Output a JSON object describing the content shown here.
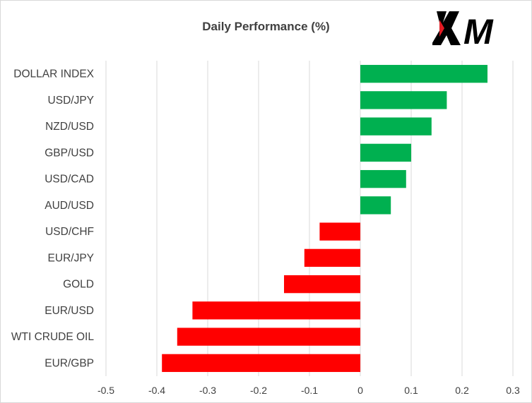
{
  "chart_data": {
    "type": "bar",
    "orientation": "horizontal",
    "title": "Daily Performance (%)",
    "categories": [
      "DOLLAR INDEX",
      "USD/JPY",
      "NZD/USD",
      "GBP/USD",
      "USD/CAD",
      "AUD/USD",
      "USD/CHF",
      "EUR/JPY",
      "GOLD",
      "EUR/USD",
      "WTI CRUDE OIL",
      "EUR/GBP"
    ],
    "values": [
      0.25,
      0.17,
      0.14,
      0.1,
      0.09,
      0.06,
      -0.08,
      -0.11,
      -0.15,
      -0.33,
      -0.36,
      -0.39
    ],
    "xlim": [
      -0.5,
      0.3
    ],
    "xticks": [
      "-0.5",
      "-0.4",
      "-0.3",
      "-0.2",
      "-0.1",
      "0",
      "0.1",
      "0.2",
      "0.3"
    ],
    "xtick_values": [
      -0.5,
      -0.4,
      -0.3,
      -0.2,
      -0.1,
      0,
      0.1,
      0.2,
      0.3
    ],
    "grid": "vertical",
    "legend": "none",
    "colors": {
      "positive": "#00b050",
      "negative": "#ff0000",
      "grid": "#d9d9d9"
    }
  },
  "brand": {
    "logo_text": "XM",
    "logo_color": "#000000",
    "accent_color": "#e31b23"
  }
}
